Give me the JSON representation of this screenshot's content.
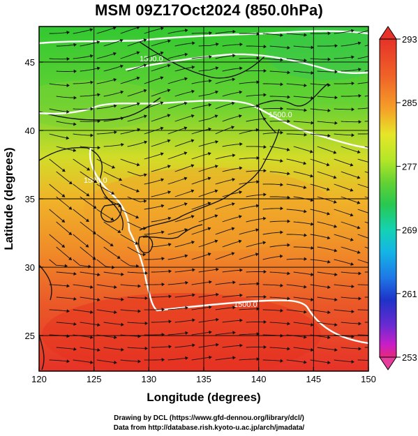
{
  "title": "MSM 09Z17Oct2024 (850.0hPa)",
  "xlabel": "Longitude (degrees)",
  "ylabel": "Latitude  (degrees)",
  "credits": {
    "line1": "Drawing by DCL (https://www.gfd-dennou.org/library/dcl/)",
    "line2": "Data from http://database.rish.kyoto-u.ac.jp/arch/jmadata/"
  },
  "chart_data": {
    "type": "heatmap",
    "xlim": [
      120,
      150
    ],
    "ylim": [
      22.4,
      47.6
    ],
    "x_ticks": [
      "120",
      "125",
      "130",
      "135",
      "140",
      "145",
      "150"
    ],
    "y_ticks": [
      "25",
      "30",
      "35",
      "40",
      "45"
    ],
    "grid": true,
    "colorbar": {
      "min": 253,
      "max": 293,
      "tick_labels": [
        "293",
        "285",
        "277",
        "269",
        "261",
        "253"
      ],
      "colors": [
        "#e6287a",
        "#c81ec8",
        "#6a2ad2",
        "#1e32c8",
        "#1e78e6",
        "#14b4e6",
        "#14d2b4",
        "#28c850",
        "#64d232",
        "#b4e628",
        "#e6e628",
        "#f5c828",
        "#f59628",
        "#f06428",
        "#e63228"
      ]
    },
    "contour_labels": [
      "1500.0",
      "1500.0",
      "1500.0",
      "1500.0"
    ],
    "overlays": [
      "temperature-shading",
      "wind-streamlines",
      "coastlines",
      "geopotential-height-contours"
    ]
  }
}
